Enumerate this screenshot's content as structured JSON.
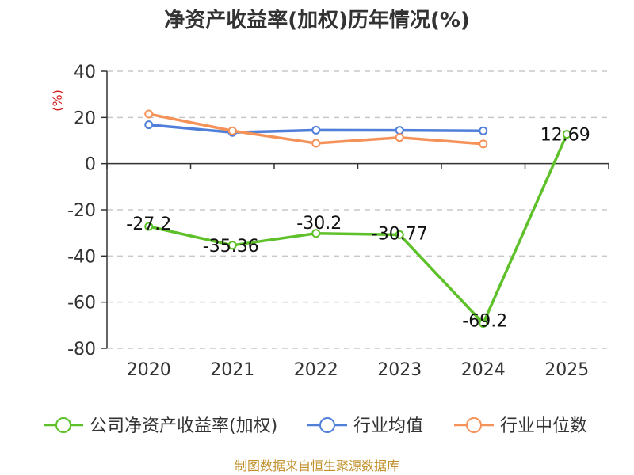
{
  "chart_data": {
    "type": "line",
    "title": "净资产收益率(加权)历年情况(%)",
    "ylabel": "(%)",
    "xlabel": "",
    "categories": [
      "2020",
      "2021",
      "2022",
      "2023",
      "2024",
      "2025"
    ],
    "ylim": [
      -80,
      40
    ],
    "yticks": [
      40,
      20,
      0,
      -20,
      -40,
      -60,
      -80
    ],
    "grid": true,
    "legend_position": "bottom",
    "series": [
      {
        "name": "公司净资产收益率(加权)",
        "color": "#5ec12a",
        "values": [
          -27.2,
          -35.36,
          -30.2,
          -30.77,
          -69.2,
          12.69
        ],
        "labels": [
          "-27.2",
          "-35.36",
          "-30.2",
          "-30.77",
          "-69.2",
          "12.69"
        ]
      },
      {
        "name": "行业均值",
        "color": "#4f7fd9",
        "values": [
          16.8,
          13.5,
          14.5,
          14.4,
          14.2,
          null
        ]
      },
      {
        "name": "行业中位数",
        "color": "#f5925a",
        "values": [
          21.5,
          14.2,
          8.8,
          11.3,
          8.5,
          null
        ]
      }
    ],
    "source": "制图数据来自恒生聚源数据库"
  }
}
